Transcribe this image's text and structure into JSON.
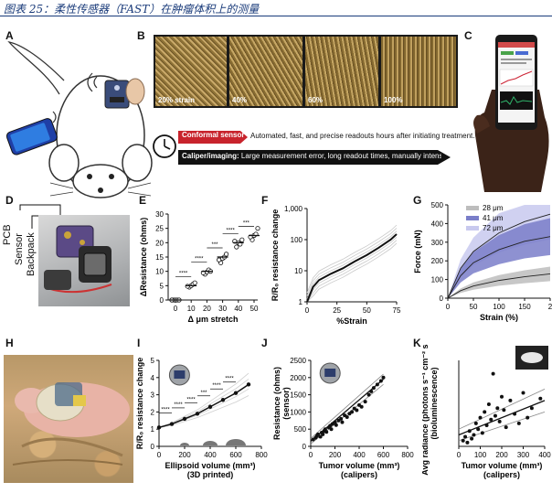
{
  "caption": "图表 25：柔性传感器（FAST）在肿瘤体积上的测量",
  "panels": {
    "A": "A",
    "B": "B",
    "C": "C",
    "D": "D",
    "E": "E",
    "F": "F",
    "G": "G",
    "H": "H",
    "I": "I",
    "J": "J",
    "K": "K"
  },
  "panel_b": {
    "strain_labels": [
      "20% strain",
      "40%",
      "60%",
      "100%"
    ],
    "conformal_label": "Conformal sensor",
    "conformal_text": "Automated, fast, and precise readouts hours after initiating treatment.",
    "caliper_label": "Caliper/imaging:",
    "caliper_text": "Large measurement error, long readout times, manually intensive"
  },
  "panel_d": {
    "labels": [
      "PCB",
      "Sensor",
      "Backpack"
    ]
  },
  "chart_data": [
    {
      "panel": "E",
      "type": "scatter",
      "xlabel": "Δ μm stretch",
      "ylabel": "ΔResistance (ohms)",
      "categories": [
        0,
        10,
        20,
        30,
        40,
        50
      ],
      "points": [
        [
          0,
          0
        ],
        [
          0,
          0
        ],
        [
          0,
          0
        ],
        [
          0,
          0
        ],
        [
          0,
          0
        ],
        [
          0,
          0
        ],
        [
          10,
          4.5
        ],
        [
          10,
          5
        ],
        [
          10,
          5.5
        ],
        [
          10,
          6
        ],
        [
          10,
          4.8
        ],
        [
          20,
          9
        ],
        [
          20,
          9.8
        ],
        [
          20,
          10.5
        ],
        [
          20,
          10
        ],
        [
          20,
          9.5
        ],
        [
          30,
          13
        ],
        [
          30,
          14.5
        ],
        [
          30,
          15
        ],
        [
          30,
          16
        ],
        [
          30,
          14
        ],
        [
          40,
          18.5
        ],
        [
          40,
          20
        ],
        [
          40,
          19.5
        ],
        [
          40,
          21
        ],
        [
          40,
          20.5
        ],
        [
          50,
          21
        ],
        [
          50,
          22.5
        ],
        [
          50,
          23
        ],
        [
          50,
          25
        ],
        [
          50,
          22
        ]
      ],
      "means": [
        0,
        5,
        10,
        15,
        20,
        22.5
      ],
      "significance": [
        "****",
        "****",
        "***",
        "****",
        "***"
      ],
      "ylim": [
        0,
        30
      ],
      "yticks": [
        0,
        5,
        10,
        15,
        20,
        25,
        30
      ],
      "xticks": [
        "0",
        "10",
        "20",
        "30",
        "40",
        "50"
      ]
    },
    {
      "panel": "F",
      "type": "line",
      "xlabel": "%Strain",
      "ylabel": "R/R₀ resistance change",
      "yscale": "log",
      "xlim": [
        0,
        75
      ],
      "ylim": [
        1,
        1000
      ],
      "xticks": [
        "0",
        "25",
        "50",
        "75"
      ],
      "yticks": [
        "1",
        "10",
        "100",
        "1,000"
      ],
      "x": [
        0,
        5,
        10,
        20,
        30,
        40,
        50,
        60,
        70,
        75
      ],
      "y": [
        1,
        3,
        5,
        8,
        12,
        20,
        32,
        55,
        100,
        150
      ]
    },
    {
      "panel": "G",
      "type": "area",
      "xlabel": "Strain (%)",
      "ylabel": "Force (mN)",
      "xlim": [
        0,
        200
      ],
      "ylim": [
        0,
        500
      ],
      "xticks": [
        "0",
        "50",
        "100",
        "150",
        "2"
      ],
      "yticks": [
        "0",
        "100",
        "200",
        "300",
        "400",
        "500"
      ],
      "series": [
        {
          "name": "28 μm",
          "color": "#bdbdbd",
          "x": [
            0,
            25,
            50,
            100,
            150,
            200
          ],
          "y": [
            0,
            40,
            65,
            95,
            115,
            130
          ]
        },
        {
          "name": "41 μm",
          "color": "#7a7ec9",
          "x": [
            0,
            25,
            50,
            100,
            150,
            200
          ],
          "y": [
            0,
            120,
            190,
            260,
            305,
            330
          ]
        },
        {
          "name": "72 μm",
          "color": "#c8c9ee",
          "x": [
            0,
            25,
            50,
            100,
            150,
            200
          ],
          "y": [
            0,
            160,
            250,
            350,
            410,
            450
          ]
        }
      ]
    },
    {
      "panel": "I",
      "type": "line",
      "xlabel": "Ellipsoid volume (mm³)",
      "xlabel2": "(3D printed)",
      "ylabel": "R/R₀ resistance change",
      "xlim": [
        0,
        800
      ],
      "ylim": [
        0,
        5
      ],
      "xticks": [
        "0",
        "200",
        "400",
        "600",
        "800"
      ],
      "yticks": [
        "0",
        "1",
        "2",
        "3",
        "4",
        "5"
      ],
      "x": [
        0,
        100,
        200,
        300,
        400,
        500,
        600,
        700
      ],
      "y": [
        1.1,
        1.3,
        1.6,
        1.9,
        2.3,
        2.7,
        3.1,
        3.6
      ],
      "significance": [
        "****",
        "****",
        "****",
        "***",
        "****",
        "****"
      ]
    },
    {
      "panel": "J",
      "type": "scatter",
      "xlabel": "Tumor volume (mm³)",
      "xlabel2": "(calipers)",
      "ylabel": "Resistance (ohms)",
      "ylabel2": "(sensor)",
      "xlim": [
        0,
        800
      ],
      "ylim": [
        0,
        2500
      ],
      "xticks": [
        "0",
        "200",
        "400",
        "600",
        "800"
      ],
      "yticks": [
        "0",
        "500",
        "1000",
        "1500",
        "2000",
        "2500"
      ],
      "points": [
        [
          20,
          200
        ],
        [
          40,
          250
        ],
        [
          50,
          300
        ],
        [
          60,
          350
        ],
        [
          80,
          280
        ],
        [
          90,
          400
        ],
        [
          100,
          350
        ],
        [
          110,
          450
        ],
        [
          120,
          500
        ],
        [
          130,
          420
        ],
        [
          150,
          550
        ],
        [
          160,
          600
        ],
        [
          170,
          500
        ],
        [
          180,
          650
        ],
        [
          200,
          700
        ],
        [
          210,
          620
        ],
        [
          230,
          750
        ],
        [
          250,
          800
        ],
        [
          260,
          700
        ],
        [
          280,
          900
        ],
        [
          300,
          850
        ],
        [
          320,
          950
        ],
        [
          340,
          1000
        ],
        [
          360,
          1100
        ],
        [
          380,
          1050
        ],
        [
          400,
          1200
        ],
        [
          420,
          1150
        ],
        [
          450,
          1300
        ],
        [
          480,
          1500
        ],
        [
          500,
          1600
        ],
        [
          520,
          1700
        ],
        [
          550,
          1800
        ],
        [
          580,
          1900
        ],
        [
          600,
          2000
        ]
      ],
      "fit": [
        [
          0,
          150
        ],
        [
          600,
          1950
        ]
      ]
    },
    {
      "panel": "K",
      "type": "scatter",
      "xlabel": "Tumor volume (mm³)",
      "xlabel2": "(calipers)",
      "ylabel": "Avg radiance (photons s⁻¹ cm⁻² sr⁻¹)",
      "ylabel2": "(bioluminescence)",
      "xlim": [
        0,
        400
      ],
      "xticks": [
        "0",
        "100",
        "200",
        "300",
        "400"
      ],
      "points": [
        [
          20,
          0.3
        ],
        [
          30,
          0.5
        ],
        [
          40,
          0.2
        ],
        [
          50,
          0.8
        ],
        [
          60,
          0.4
        ],
        [
          70,
          0.6
        ],
        [
          80,
          1.2
        ],
        [
          90,
          0.9
        ],
        [
          100,
          1.5
        ],
        [
          110,
          0.7
        ],
        [
          120,
          1.8
        ],
        [
          130,
          1.1
        ],
        [
          140,
          2.2
        ],
        [
          150,
          1.4
        ],
        [
          160,
          3.8
        ],
        [
          170,
          1.6
        ],
        [
          180,
          2.0
        ],
        [
          190,
          1.3
        ],
        [
          200,
          2.6
        ],
        [
          210,
          1.9
        ],
        [
          220,
          1.0
        ],
        [
          240,
          2.4
        ],
        [
          260,
          1.7
        ],
        [
          280,
          1.2
        ],
        [
          300,
          2.8
        ],
        [
          320,
          1.5
        ],
        [
          340,
          2.0
        ],
        [
          380,
          2.5
        ]
      ],
      "fit": [
        [
          0,
          0.6
        ],
        [
          400,
          2.4
        ]
      ]
    }
  ]
}
